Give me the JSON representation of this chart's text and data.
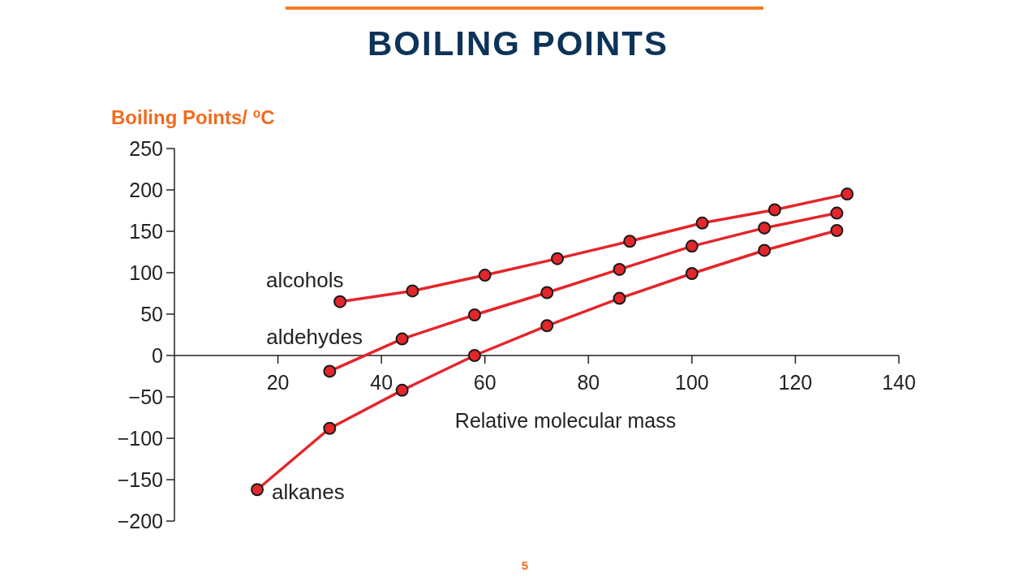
{
  "chart_data": {
    "type": "line",
    "title": "BOILING POINTS",
    "ylabel": "Boiling Points/ $^{o}$C",
    "xlabel": "Relative molecular mass",
    "annotations": [
      "5"
    ],
    "xlim": [
      0,
      140
    ],
    "xticks": [
      20,
      40,
      60,
      80,
      100,
      120,
      140
    ],
    "ylim": [
      -200,
      250
    ],
    "yticks": [
      {
        "value": -200,
        "label": "−200"
      },
      {
        "value": -150,
        "label": "−150"
      },
      {
        "value": -100,
        "label": "−100"
      },
      {
        "value": -50,
        "label": "−50"
      },
      0,
      50,
      100,
      150,
      200,
      250
    ],
    "grid": false,
    "marker": "circle",
    "line_style": "solid",
    "series": [
      {
        "name": "alcohols",
        "color": "#e3262b",
        "x": [
          32,
          46,
          60,
          74,
          88,
          102,
          116,
          130
        ],
        "values": [
          65,
          78,
          97,
          117,
          138,
          160,
          176,
          195
        ]
      },
      {
        "name": "aldehydes",
        "color": "#e3262b",
        "x": [
          30,
          44,
          58,
          72,
          86,
          100,
          114,
          128
        ],
        "values": [
          -19,
          20,
          49,
          76,
          104,
          132,
          154,
          172
        ]
      },
      {
        "name": "alkanes",
        "color": "#e3262b",
        "x": [
          16,
          30,
          44,
          58,
          72,
          86,
          100,
          114,
          128
        ],
        "values": [
          -162,
          -88,
          -42,
          0,
          36,
          69,
          99,
          127,
          151
        ]
      }
    ]
  }
}
